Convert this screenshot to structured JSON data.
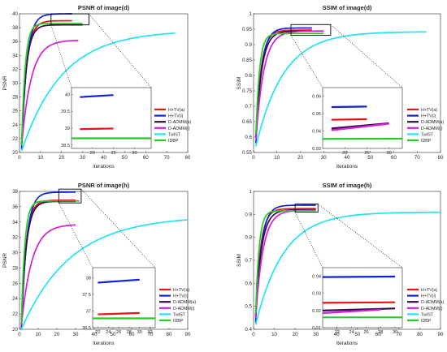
{
  "colors": {
    "H+TV(a)": "#ee1111",
    "H+TV(i)": "#1020dd",
    "D-ADMM(a)": "#3a0a4a",
    "D-ADMM(i)": "#d61ed6",
    "TwIST": "#22e4ee",
    "IDBP": "#22cc22"
  },
  "legend_entries": [
    "H+TV(a)",
    "H+TV(i)",
    "D-ADMM(a)",
    "D-ADMM(i)",
    "TwIST",
    "IDBP"
  ],
  "chart_data": [
    {
      "type": "line",
      "title": "PSNR of image(d)",
      "xlabel": "iterations",
      "ylabel": "PSNR",
      "xlim": [
        0,
        80
      ],
      "ylim": [
        20,
        40
      ],
      "xticks": [
        "0",
        "10",
        "20",
        "30",
        "40",
        "50",
        "60",
        "70",
        "80"
      ],
      "yticks": [
        "20",
        "22",
        "24",
        "26",
        "28",
        "30",
        "32",
        "34",
        "36",
        "38",
        "40"
      ],
      "legend": "inset right",
      "series": [
        {
          "name": "H+TV(a)",
          "final": 39.0,
          "n": 25,
          "k": 0.42,
          "y0": 21.0
        },
        {
          "name": "H+TV(i)",
          "final": 40.0,
          "n": 25,
          "k": 0.4,
          "y0": 20.5
        },
        {
          "name": "D-ADMM(a)",
          "final": 38.4,
          "n": 30,
          "k": 0.45,
          "y0": 21.2
        },
        {
          "name": "D-ADMM(i)",
          "final": 36.2,
          "n": 28,
          "k": 0.22,
          "y0": 21.0
        },
        {
          "name": "TwIST",
          "final": 37.6,
          "n": 74,
          "k": 0.052,
          "y0": 20.2
        },
        {
          "name": "IDBP",
          "final": 38.6,
          "n": 30,
          "k": 0.6,
          "y0": 21.0
        }
      ],
      "zoom": {
        "xrange": [
          15,
          34
        ],
        "yrange": [
          38.4,
          40.2
        ],
        "xticks": [
          "20",
          "25",
          "30"
        ],
        "yticks": [
          "38.5",
          "39",
          "39.5",
          "40"
        ],
        "series": [
          {
            "name": "H+TV(i)",
            "x": [
              17,
              25
            ],
            "y": [
              39.92,
              39.98
            ]
          },
          {
            "name": "H+TV(a)",
            "x": [
              17,
              25
            ],
            "y": [
              38.97,
              38.99
            ]
          },
          {
            "name": "IDBP",
            "x": [
              15,
              34
            ],
            "y": [
              38.7,
              38.7
            ]
          }
        ]
      }
    },
    {
      "type": "line",
      "title": "SSIM of image(d)",
      "xlabel": "iterations",
      "ylabel": "SSIM",
      "xlim": [
        0,
        80
      ],
      "ylim": [
        0.55,
        1
      ],
      "xticks": [
        "0",
        "10",
        "20",
        "30",
        "40",
        "50",
        "60",
        "70",
        "80"
      ],
      "yticks": [
        "0.55",
        "0.6",
        "0.65",
        "0.7",
        "0.75",
        "0.8",
        "0.85",
        "0.9",
        "0.95",
        "1"
      ],
      "legend": "inset right",
      "series": [
        {
          "name": "H+TV(a)",
          "final": 0.947,
          "n": 25,
          "k": 0.45,
          "y0": 0.6
        },
        {
          "name": "H+TV(i)",
          "final": 0.954,
          "n": 25,
          "k": 0.43,
          "y0": 0.58
        },
        {
          "name": "D-ADMM(a)",
          "final": 0.944,
          "n": 30,
          "k": 0.4,
          "y0": 0.6
        },
        {
          "name": "D-ADMM(i)",
          "final": 0.944,
          "n": 30,
          "k": 0.3,
          "y0": 0.59
        },
        {
          "name": "TwIST",
          "final": 0.942,
          "n": 74,
          "k": 0.085,
          "y0": 0.57
        },
        {
          "name": "IDBP",
          "final": 0.936,
          "n": 30,
          "k": 0.65,
          "y0": 0.61
        }
      ],
      "zoom": {
        "xrange": [
          15,
          33
        ],
        "yrange": [
          0.93,
          0.965
        ],
        "xticks": [
          "20",
          "25",
          "30"
        ],
        "yticks": [
          "0.93",
          "0.94",
          "0.95",
          "0.96"
        ],
        "series": [
          {
            "name": "H+TV(i)",
            "x": [
              17,
              25
            ],
            "y": [
              0.9538,
              0.9541
            ]
          },
          {
            "name": "H+TV(a)",
            "x": [
              17,
              25
            ],
            "y": [
              0.9465,
              0.9468
            ]
          },
          {
            "name": "D-ADMM(a)",
            "x": [
              17,
              30
            ],
            "y": [
              0.9415,
              0.9445
            ]
          },
          {
            "name": "D-ADMM(i)",
            "x": [
              17,
              30
            ],
            "y": [
              0.9405,
              0.9442
            ]
          },
          {
            "name": "IDBP",
            "x": [
              15,
              33
            ],
            "y": [
              0.9355,
              0.9356
            ]
          }
        ]
      }
    },
    {
      "type": "line",
      "title": "PSNR of image(h)",
      "xlabel": "iterations",
      "ylabel": "PSNR",
      "xlim": [
        0,
        90
      ],
      "ylim": [
        20,
        38
      ],
      "xticks": [
        "0",
        "10",
        "20",
        "30",
        "40",
        "50",
        "60",
        "70",
        "80",
        "90"
      ],
      "yticks": [
        "20",
        "22",
        "24",
        "26",
        "28",
        "30",
        "32",
        "34",
        "36",
        "38"
      ],
      "legend": "inset right",
      "series": [
        {
          "name": "H+TV(a)",
          "final": 36.85,
          "n": 30,
          "k": 0.4,
          "y0": 20.5
        },
        {
          "name": "H+TV(i)",
          "final": 37.9,
          "n": 30,
          "k": 0.36,
          "y0": 20.0
        },
        {
          "name": "D-ADMM(a)",
          "final": 36.7,
          "n": 30,
          "k": 0.38,
          "y0": 20.5
        },
        {
          "name": "D-ADMM(i)",
          "final": 33.7,
          "n": 30,
          "k": 0.18,
          "y0": 20.5
        },
        {
          "name": "TwIST",
          "final": 34.8,
          "n": 90,
          "k": 0.038,
          "y0": 20.0
        },
        {
          "name": "IDBP",
          "final": 36.75,
          "n": 32,
          "k": 0.55,
          "y0": 20.8
        }
      ],
      "zoom": {
        "xrange": [
          21,
          33
        ],
        "yrange": [
          36.5,
          38.3
        ],
        "xticks": [
          "22",
          "24",
          "26",
          "28",
          "30",
          "32"
        ],
        "yticks": [
          "36.5",
          "37",
          "37.5",
          "38"
        ],
        "series": [
          {
            "name": "H+TV(i)",
            "x": [
              22,
              30
            ],
            "y": [
              37.85,
              37.94
            ]
          },
          {
            "name": "H+TV(a)",
            "x": [
              22,
              30
            ],
            "y": [
              36.9,
              36.94
            ]
          },
          {
            "name": "IDBP",
            "x": [
              21,
              33
            ],
            "y": [
              36.78,
              36.78
            ]
          }
        ]
      }
    },
    {
      "type": "line",
      "title": "SSIM of image(h)",
      "xlabel": "iterations",
      "ylabel": "SSIM",
      "xlim": [
        0,
        90
      ],
      "ylim": [
        0.4,
        1
      ],
      "xticks": [
        "0",
        "10",
        "20",
        "30",
        "40",
        "50",
        "60",
        "70",
        "80",
        "90"
      ],
      "yticks": [
        "0.4",
        "0.5",
        "0.6",
        "0.7",
        "0.8",
        "0.9",
        "1"
      ],
      "legend": "inset right",
      "series": [
        {
          "name": "H+TV(a)",
          "final": 0.925,
          "n": 30,
          "k": 0.42,
          "y0": 0.45
        },
        {
          "name": "H+TV(i)",
          "final": 0.94,
          "n": 30,
          "k": 0.38,
          "y0": 0.43
        },
        {
          "name": "D-ADMM(a)",
          "final": 0.92,
          "n": 30,
          "k": 0.35,
          "y0": 0.46
        },
        {
          "name": "D-ADMM(i)",
          "final": 0.918,
          "n": 30,
          "k": 0.28,
          "y0": 0.45
        },
        {
          "name": "TwIST",
          "final": 0.91,
          "n": 90,
          "k": 0.075,
          "y0": 0.42
        },
        {
          "name": "IDBP",
          "final": 0.916,
          "n": 30,
          "k": 0.6,
          "y0": 0.47
        }
      ],
      "zoom": {
        "xrange": [
          20,
          31
        ],
        "yrange": [
          0.91,
          0.945
        ],
        "xticks": [
          "22",
          "24",
          "26",
          "28",
          "30"
        ],
        "yticks": [
          "0.91",
          "0.92",
          "0.93",
          "0.94"
        ],
        "series": [
          {
            "name": "H+TV(i)",
            "x": [
              20,
              30
            ],
            "y": [
              0.9395,
              0.9398
            ]
          },
          {
            "name": "H+TV(a)",
            "x": [
              20,
              30
            ],
            "y": [
              0.9245,
              0.9248
            ]
          },
          {
            "name": "D-ADMM(a)",
            "x": [
              20,
              30
            ],
            "y": [
              0.92,
              0.9212
            ]
          },
          {
            "name": "D-ADMM(i)",
            "x": [
              20,
              28
            ],
            "y": [
              0.9185,
              0.9205
            ]
          },
          {
            "name": "IDBP",
            "x": [
              20,
              31
            ],
            "y": [
              0.916,
              0.916
            ]
          }
        ]
      }
    }
  ]
}
